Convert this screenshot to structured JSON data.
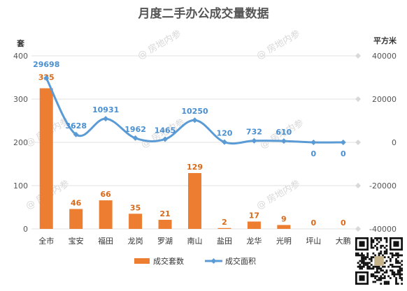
{
  "watermark": "@ 房地内参",
  "colors": {
    "bar": "#ed7d31",
    "line": "#5b9bd5",
    "bar_label": "#d9691a",
    "line_label": "#4a8fd0"
  },
  "chart_data": {
    "type": "bar",
    "title": "月度二手办公成交量数据",
    "categories": [
      "全市",
      "宝安",
      "福田",
      "龙岗",
      "罗湖",
      "南山",
      "盐田",
      "龙华",
      "光明",
      "坪山",
      "大鹏"
    ],
    "left_axis": {
      "unit": "套",
      "ylim": [
        0,
        400
      ],
      "ticks": [
        0,
        100,
        200,
        300,
        400
      ]
    },
    "right_axis": {
      "unit": "平方米",
      "ylim": [
        -40000,
        40000
      ],
      "ticks": [
        -40000,
        -20000,
        0,
        20000,
        40000
      ]
    },
    "series": [
      {
        "name": "成交套数",
        "type": "bar",
        "axis": "left",
        "values": [
          325,
          46,
          66,
          35,
          21,
          129,
          2,
          17,
          9,
          0,
          0
        ]
      },
      {
        "name": "成交面积",
        "type": "line",
        "axis": "right",
        "values": [
          29698,
          3628,
          10931,
          1962,
          1465,
          10250,
          120,
          732,
          610,
          0,
          0
        ]
      }
    ],
    "legend": {
      "position": "bottom"
    },
    "grid": true
  }
}
